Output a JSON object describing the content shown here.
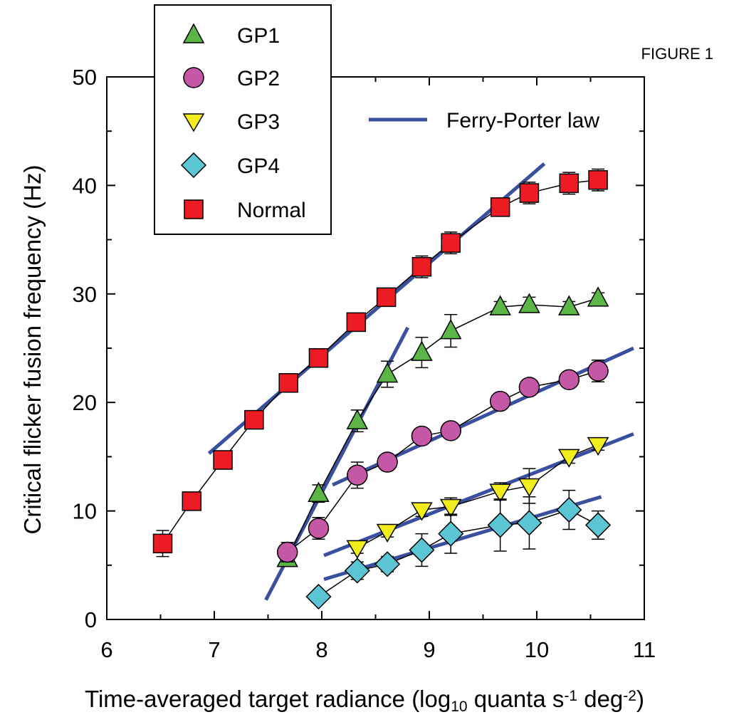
{
  "figure_label": "FIGURE 1",
  "chart_data": {
    "type": "scatter",
    "title": "",
    "xlabel": "Time-averaged target radiance (log",
    "xlabel_sub": "10",
    "xlabel_mid": " quanta s",
    "xlabel_sup1": "-1",
    "xlabel_mid2": " deg",
    "xlabel_sup2": "-2",
    "xlabel_end": ")",
    "ylabel": "Critical flicker fusion frequency (Hz)",
    "xlim": [
      6,
      11
    ],
    "ylim": [
      0,
      50
    ],
    "xticks": [
      "6",
      "7",
      "8",
      "9",
      "10",
      "11"
    ],
    "yticks": [
      "0",
      "10",
      "20",
      "30",
      "40",
      "50"
    ],
    "grid": false,
    "legend_position": "top-left",
    "colors": {
      "GP1": "#5cb547",
      "GP2": "#c457a6",
      "GP3": "#f2ee1d",
      "GP4": "#5cc5d4",
      "Normal": "#ed1c24",
      "fit": "#3b4f9f"
    },
    "series": [
      {
        "name": "GP1",
        "marker": "triangle-up",
        "x": [
          7.68,
          7.97,
          8.33,
          8.61,
          8.93,
          9.2,
          9.66,
          9.93,
          10.3,
          10.57
        ],
        "y": [
          5.6,
          11.6,
          18.3,
          22.6,
          24.6,
          26.6,
          28.8,
          29.0,
          28.8,
          29.6
        ],
        "yerr": [
          0.6,
          0.8,
          1.0,
          1.2,
          1.4,
          1.5,
          0.5,
          0.7,
          0.5,
          0.5
        ]
      },
      {
        "name": "GP2",
        "marker": "circle",
        "x": [
          7.68,
          7.97,
          8.33,
          8.61,
          8.93,
          9.2,
          9.66,
          9.93,
          10.3,
          10.57
        ],
        "y": [
          6.2,
          8.4,
          13.3,
          14.5,
          16.9,
          17.4,
          20.1,
          21.4,
          22.1,
          22.9
        ],
        "yerr": [
          0.9,
          1.0,
          1.2,
          0.6,
          0.5,
          0.5,
          0.5,
          0.5,
          0.5,
          1.0
        ]
      },
      {
        "name": "GP3",
        "marker": "triangle-down",
        "x": [
          8.33,
          8.61,
          8.93,
          9.2,
          9.66,
          9.93,
          10.3,
          10.57
        ],
        "y": [
          6.6,
          8.1,
          10.1,
          10.4,
          11.8,
          12.3,
          15.0,
          16.1
        ],
        "yerr": [
          0.5,
          0.5,
          0.6,
          0.8,
          0.8,
          1.6,
          0.6,
          0.5
        ]
      },
      {
        "name": "GP4",
        "marker": "diamond",
        "x": [
          7.97,
          8.33,
          8.61,
          8.93,
          9.2,
          9.66,
          9.93,
          10.3,
          10.57
        ],
        "y": [
          2.1,
          4.5,
          5.1,
          6.4,
          7.9,
          8.7,
          8.9,
          10.1,
          8.7
        ],
        "yerr": [
          0.5,
          0.8,
          0.7,
          1.5,
          1.8,
          2.4,
          2.4,
          1.8,
          1.3
        ]
      },
      {
        "name": "Normal",
        "marker": "square",
        "x": [
          6.52,
          6.79,
          7.08,
          7.37,
          7.69,
          7.97,
          8.32,
          8.6,
          8.93,
          9.2,
          9.66,
          9.93,
          10.3,
          10.57
        ],
        "y": [
          7.0,
          10.9,
          14.7,
          18.4,
          21.8,
          24.1,
          27.4,
          29.7,
          32.5,
          34.7,
          38.0,
          39.3,
          40.2,
          40.5
        ],
        "yerr": [
          1.2,
          0.8,
          0.6,
          0.6,
          0.6,
          0.6,
          0.6,
          0.8,
          1.0,
          1.0,
          0.8,
          1.0,
          1.0,
          1.0
        ]
      }
    ],
    "fit_lines": [
      {
        "x": [
          6.95,
          10.07
        ],
        "y": [
          15.3,
          42.0
        ]
      },
      {
        "x": [
          7.48,
          8.8
        ],
        "y": [
          1.8,
          26.9
        ]
      },
      {
        "x": [
          8.1,
          10.9
        ],
        "y": [
          12.4,
          25.0
        ]
      },
      {
        "x": [
          8.02,
          10.9
        ],
        "y": [
          5.9,
          17.1
        ]
      },
      {
        "x": [
          8.02,
          10.6
        ],
        "y": [
          3.7,
          11.3
        ]
      }
    ],
    "legend": [
      {
        "label": "GP1",
        "marker": "triangle-up",
        "color": "#5cb547"
      },
      {
        "label": "GP2",
        "marker": "circle",
        "color": "#c457a6"
      },
      {
        "label": "GP3",
        "marker": "triangle-down",
        "color": "#f2ee1d"
      },
      {
        "label": "GP4",
        "marker": "diamond",
        "color": "#5cc5d4"
      },
      {
        "label": "Normal",
        "marker": "square",
        "color": "#ed1c24"
      }
    ],
    "fit_legend_label": "Ferry-Porter law"
  }
}
